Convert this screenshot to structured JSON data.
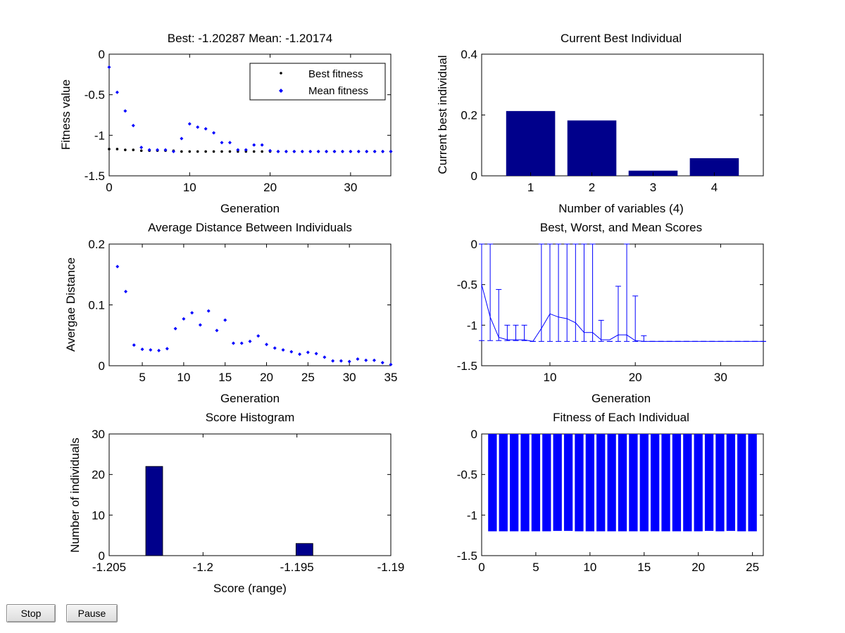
{
  "colors": {
    "best_marker": "#000000",
    "mean_marker": "#0000ff",
    "dark_bar": "#00008b",
    "blue_bar": "#0000ff",
    "axis": "#000000"
  },
  "controls": {
    "stop_label": "Stop",
    "pause_label": "Pause"
  },
  "chart_data": [
    {
      "type": "scatter",
      "title": "Best: -1.20287 Mean: -1.20174",
      "xlabel": "Generation",
      "ylabel": "Fitness value",
      "xlim": [
        0,
        35
      ],
      "ylim": [
        -1.5,
        0
      ],
      "xticks": [
        0,
        10,
        20,
        30
      ],
      "xtick_labels": [
        "0",
        "10",
        "20",
        "30"
      ],
      "yticks": [
        -1.5,
        -1,
        -0.5,
        0
      ],
      "ytick_labels": [
        "-1.5",
        "-1",
        "-0.5",
        "0"
      ],
      "legend_position": "top-right",
      "series": [
        {
          "name": "Best fitness",
          "marker": "dot",
          "color": "#000000",
          "x": [
            0,
            1,
            2,
            3,
            4,
            5,
            6,
            7,
            8,
            9,
            10,
            11,
            12,
            13,
            14,
            15,
            16,
            17,
            18,
            19,
            20,
            21,
            22,
            23,
            24,
            25,
            26,
            27,
            28,
            29,
            30,
            31,
            32,
            33,
            34,
            35
          ],
          "y": [
            -1.17,
            -1.17,
            -1.18,
            -1.18,
            -1.19,
            -1.19,
            -1.19,
            -1.19,
            -1.19,
            -1.2,
            -1.2,
            -1.2,
            -1.2,
            -1.2,
            -1.2,
            -1.2,
            -1.2,
            -1.2,
            -1.2,
            -1.2,
            -1.2,
            -1.2,
            -1.2,
            -1.2,
            -1.2,
            -1.2,
            -1.2,
            -1.2,
            -1.2,
            -1.2,
            -1.2,
            -1.2,
            -1.2,
            -1.2,
            -1.2,
            -1.2
          ]
        },
        {
          "name": "Mean fitness",
          "marker": "diamond",
          "color": "#0000ff",
          "x": [
            0,
            1,
            2,
            3,
            4,
            5,
            6,
            7,
            8,
            9,
            10,
            11,
            12,
            13,
            14,
            15,
            16,
            17,
            18,
            19,
            20,
            21,
            22,
            23,
            24,
            25,
            26,
            27,
            28,
            29,
            30,
            31,
            32,
            33,
            34,
            35
          ],
          "y": [
            -0.16,
            -0.47,
            -0.7,
            -0.88,
            -1.15,
            -1.18,
            -1.18,
            -1.18,
            -1.2,
            -1.04,
            -0.86,
            -0.9,
            -0.92,
            -0.97,
            -1.09,
            -1.09,
            -1.18,
            -1.18,
            -1.12,
            -1.12,
            -1.19,
            -1.2,
            -1.2,
            -1.2,
            -1.2,
            -1.2,
            -1.2,
            -1.2,
            -1.2,
            -1.2,
            -1.2,
            -1.2,
            -1.2,
            -1.2,
            -1.2,
            -1.2
          ]
        }
      ]
    },
    {
      "type": "bar",
      "title": "Current Best Individual",
      "xlabel": "Number of variables (4)",
      "ylabel": "Current best individual",
      "categories": [
        "1",
        "2",
        "3",
        "4"
      ],
      "values": [
        0.213,
        0.182,
        0.017,
        0.058
      ],
      "xlim": [
        0.2,
        4.8
      ],
      "ylim": [
        0,
        0.4
      ],
      "yticks": [
        0,
        0.2,
        0.4
      ],
      "ytick_labels": [
        "0",
        "0.2",
        "0.4"
      ],
      "color": "#00008b"
    },
    {
      "type": "scatter",
      "title": "Average Distance Between Individuals",
      "xlabel": "Generation",
      "ylabel": "Avergae Distance",
      "xlim": [
        1,
        35
      ],
      "ylim": [
        0,
        0.2
      ],
      "xticks": [
        5,
        10,
        15,
        20,
        25,
        30,
        35
      ],
      "xtick_labels": [
        "5",
        "10",
        "15",
        "20",
        "25",
        "30",
        "35"
      ],
      "yticks": [
        0,
        0.1,
        0.2
      ],
      "ytick_labels": [
        "0",
        "0.1",
        "0.2"
      ],
      "series": [
        {
          "marker": "diamond",
          "color": "#0000ff",
          "x": [
            2,
            3,
            4,
            5,
            6,
            7,
            8,
            9,
            10,
            11,
            12,
            13,
            14,
            15,
            16,
            17,
            18,
            19,
            20,
            21,
            22,
            23,
            24,
            25,
            26,
            27,
            28,
            29,
            30,
            31,
            32,
            33,
            34,
            35
          ],
          "y": [
            0.163,
            0.122,
            0.034,
            0.027,
            0.026,
            0.025,
            0.028,
            0.061,
            0.077,
            0.087,
            0.067,
            0.09,
            0.058,
            0.075,
            0.037,
            0.037,
            0.04,
            0.049,
            0.035,
            0.029,
            0.026,
            0.023,
            0.019,
            0.022,
            0.02,
            0.014,
            0.008,
            0.008,
            0.007,
            0.011,
            0.009,
            0.009,
            0.005,
            0.002
          ]
        }
      ]
    },
    {
      "type": "line",
      "title": "Best, Worst, and Mean Scores",
      "xlabel": "Generation",
      "ylabel": "",
      "xlim": [
        2,
        35
      ],
      "ylim": [
        -1.5,
        0
      ],
      "xticks": [
        10,
        20,
        30
      ],
      "xtick_labels": [
        "10",
        "20",
        "30"
      ],
      "yticks": [
        -1.5,
        -1,
        -0.5,
        0
      ],
      "ytick_labels": [
        "-1.5",
        "-1",
        "-0.5",
        "0"
      ],
      "x": [
        2,
        3,
        4,
        5,
        6,
        7,
        8,
        9,
        10,
        11,
        12,
        13,
        14,
        15,
        16,
        17,
        18,
        19,
        20,
        21,
        22,
        23,
        24,
        25,
        26,
        27,
        28,
        29,
        30,
        31,
        32,
        33,
        34,
        35
      ],
      "mean": [
        -0.5,
        -0.9,
        -1.15,
        -1.18,
        -1.18,
        -1.18,
        -1.2,
        -1.04,
        -0.86,
        -0.9,
        -0.92,
        -0.97,
        -1.09,
        -1.09,
        -1.18,
        -1.18,
        -1.12,
        -1.12,
        -1.19,
        -1.2,
        -1.2,
        -1.2,
        -1.2,
        -1.2,
        -1.2,
        -1.2,
        -1.2,
        -1.2,
        -1.2,
        -1.2,
        -1.2,
        -1.2,
        -1.2,
        -1.2
      ],
      "best": [
        -1.19,
        -1.19,
        -1.19,
        -1.19,
        -1.19,
        -1.19,
        -1.2,
        -1.2,
        -1.2,
        -1.2,
        -1.2,
        -1.2,
        -1.2,
        -1.2,
        -1.2,
        -1.2,
        -1.2,
        -1.2,
        -1.2,
        -1.2,
        -1.2,
        -1.2,
        -1.2,
        -1.2,
        -1.2,
        -1.2,
        -1.2,
        -1.2,
        -1.2,
        -1.2,
        -1.2,
        -1.2,
        -1.2,
        -1.2
      ],
      "worst": [
        0,
        0,
        -0.56,
        -1.0,
        -1.0,
        -1.0,
        -1.2,
        0,
        0,
        0,
        0,
        0,
        0,
        0,
        -0.94,
        -1.2,
        -0.52,
        0,
        -0.64,
        -1.13,
        -1.2,
        -1.2,
        -1.2,
        -1.2,
        -1.2,
        -1.2,
        -1.2,
        -1.2,
        -1.2,
        -1.2,
        -1.2,
        -1.2,
        -1.2,
        -1.2
      ],
      "color": "#0000ff"
    },
    {
      "type": "bar",
      "title": "Score Histogram",
      "xlabel": "Score (range)",
      "ylabel": "Number of individuals",
      "xlim": [
        -1.205,
        -1.19
      ],
      "ylim": [
        0,
        30
      ],
      "xticks": [
        -1.205,
        -1.2,
        -1.195,
        -1.19
      ],
      "xtick_labels": [
        "-1.205",
        "-1.2",
        "-1.195",
        "-1.19"
      ],
      "yticks": [
        0,
        10,
        20,
        30
      ],
      "ytick_labels": [
        "0",
        "10",
        "20",
        "30"
      ],
      "bins": [
        {
          "center": -1.2026,
          "count": 22
        },
        {
          "center": -1.1946,
          "count": 3
        }
      ],
      "bin_width": 0.0009,
      "color": "#00008b"
    },
    {
      "type": "bar",
      "title": "Fitness of Each Individual",
      "xlabel": "",
      "ylabel": "",
      "xlim": [
        0,
        26
      ],
      "ylim": [
        -1.5,
        0
      ],
      "xticks": [
        0,
        5,
        10,
        15,
        20,
        25
      ],
      "xtick_labels": [
        "0",
        "5",
        "10",
        "15",
        "20",
        "25"
      ],
      "yticks": [
        -1.5,
        -1,
        -0.5,
        0
      ],
      "ytick_labels": [
        "-1.5",
        "-1",
        "-0.5",
        "0"
      ],
      "categories": [
        1,
        2,
        3,
        4,
        5,
        6,
        7,
        8,
        9,
        10,
        11,
        12,
        13,
        14,
        15,
        16,
        17,
        18,
        19,
        20,
        21,
        22,
        23,
        24,
        25
      ],
      "values": [
        -1.2,
        -1.2,
        -1.2,
        -1.2,
        -1.2,
        -1.2,
        -1.195,
        -1.195,
        -1.2,
        -1.2,
        -1.2,
        -1.2,
        -1.2,
        -1.2,
        -1.2,
        -1.2,
        -1.2,
        -1.2,
        -1.2,
        -1.2,
        -1.195,
        -1.2,
        -1.195,
        -1.2,
        -1.2
      ],
      "color": "#0000ff"
    }
  ]
}
